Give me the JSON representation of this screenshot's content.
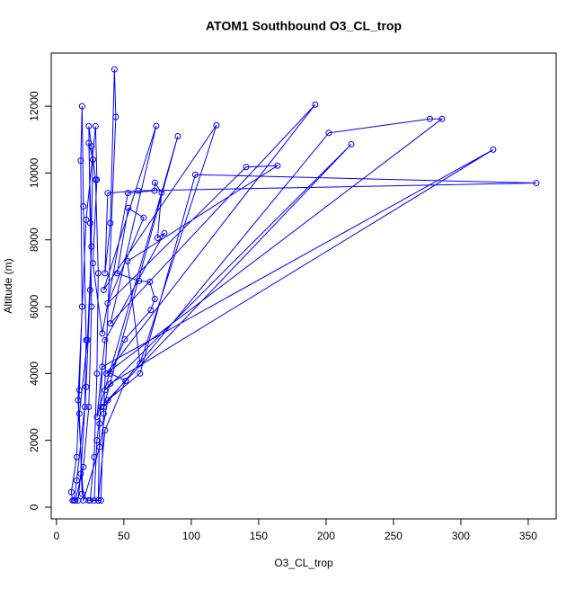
{
  "chart_data": {
    "type": "line",
    "title": "ATOM1 Southbound O3_CL_trop",
    "xlabel": "O3_CL_trop",
    "ylabel": "Altitude (m)",
    "color": "#0000ff",
    "xlim": [
      -3.9,
      370.7
    ],
    "ylim": [
      -350,
      13590
    ],
    "xticks": [
      0,
      50,
      100,
      150,
      200,
      250,
      300,
      350
    ],
    "yticks": [
      0,
      2000,
      4000,
      6000,
      8000,
      10000,
      12000
    ],
    "x": [
      12,
      11,
      15,
      17,
      19,
      18,
      19,
      20,
      22,
      21,
      15,
      13,
      14,
      20,
      24,
      26,
      25,
      24,
      26,
      29,
      31,
      30,
      28,
      25,
      28,
      30,
      33,
      218.7,
      36,
      40,
      324,
      34,
      32,
      31,
      33,
      35,
      44,
      43,
      40,
      36,
      38,
      60.7,
      356,
      103,
      62,
      38,
      32,
      20,
      16,
      22,
      29,
      30,
      27,
      34,
      53,
      72.7,
      73,
      78,
      75,
      80,
      36,
      30,
      90,
      35,
      202,
      277,
      286,
      37,
      192,
      40,
      74,
      35,
      118.7,
      62,
      52.7,
      164,
      140.7,
      38,
      64.7,
      53.3,
      45,
      61.3,
      69.3,
      73,
      70,
      50.7,
      40,
      51.3,
      36,
      31,
      24,
      19,
      17,
      23,
      26,
      24,
      27,
      25,
      22,
      18,
      16
    ],
    "values": [
      200,
      450,
      1500,
      3500,
      6000,
      10370,
      12000,
      9000,
      5000,
      3000,
      800,
      200,
      200,
      1200,
      3000,
      6000,
      8500,
      11400,
      10800,
      9800,
      7000,
      4000,
      1500,
      200,
      200,
      2000,
      3000,
      10860,
      3500,
      3700,
      10700,
      4200,
      2500,
      200,
      200,
      2800,
      11680,
      13100,
      8500,
      7000,
      9400,
      9470,
      9700,
      9950,
      4000,
      3200,
      1800,
      200,
      3200,
      8600,
      11400,
      9800,
      7300,
      5200,
      9400,
      9470,
      9710,
      9410,
      8060,
      8200,
      5000,
      2700,
      11100,
      3000,
      11200,
      11620,
      11620,
      4000,
      12050,
      5500,
      11410,
      6500,
      11430,
      4300,
      7360,
      10220,
      10180,
      6100,
      8660,
      8950,
      7000,
      6770,
      6740,
      6230,
      5900,
      5020,
      4000,
      3780,
      2300,
      200,
      200,
      400,
      2800,
      5000,
      7800,
      10900,
      10400,
      6500,
      3600,
      1000,
      200
    ]
  }
}
